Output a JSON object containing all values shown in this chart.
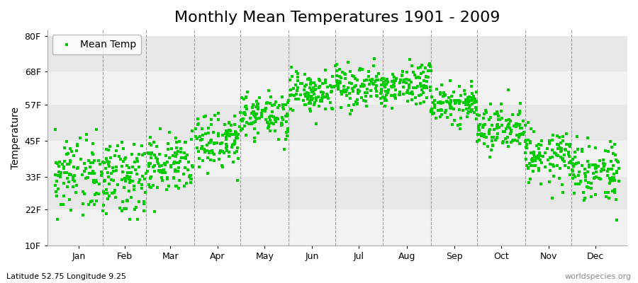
{
  "title": "Monthly Mean Temperatures 1901 - 2009",
  "ylabel": "Temperature",
  "xlabel_labels": [
    "Jan",
    "Feb",
    "Mar",
    "Apr",
    "May",
    "Jun",
    "Jul",
    "Aug",
    "Sep",
    "Oct",
    "Nov",
    "Dec"
  ],
  "ytick_labels": [
    "10F",
    "22F",
    "33F",
    "45F",
    "57F",
    "68F",
    "80F"
  ],
  "ytick_values": [
    10,
    22,
    33,
    45,
    57,
    68,
    80
  ],
  "ylim": [
    10,
    82
  ],
  "dot_color": "#00cc00",
  "marker": "s",
  "marker_size": 2.5,
  "legend_label": "Mean Temp",
  "subtitle_left": "Latitude 52.75 Longitude 9.25",
  "subtitle_right": "worldspecies.org",
  "background_color": "#ffffff",
  "plot_bg_color": "#ffffff",
  "band_colors": [
    "#f2f2f2",
    "#e8e8e8"
  ],
  "monthly_means_F": [
    33.0,
    33.0,
    37.5,
    45.0,
    53.0,
    60.5,
    63.5,
    63.0,
    57.5,
    48.5,
    39.5,
    34.5
  ],
  "monthly_stds_F": [
    6.5,
    6.5,
    5.0,
    4.5,
    4.0,
    3.5,
    3.5,
    3.5,
    3.5,
    3.5,
    4.5,
    5.5
  ],
  "n_years": 109,
  "seed": 42,
  "title_fontsize": 16,
  "label_fontsize": 10,
  "tick_fontsize": 9,
  "days_in_month": [
    31,
    28,
    31,
    30,
    31,
    30,
    31,
    31,
    30,
    31,
    30,
    31
  ]
}
